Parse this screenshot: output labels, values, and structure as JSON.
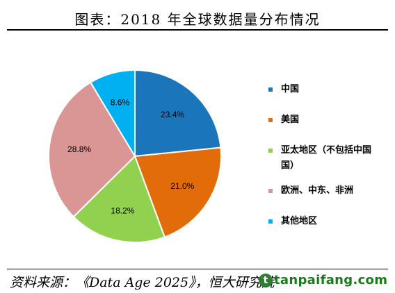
{
  "title": "图表：2018 年全球数据量分布情况",
  "source": "资料来源：《Data Age 2025》，恒大研究院",
  "watermark": {
    "logo_letter": "t",
    "text": "tanpaifang.com"
  },
  "chart_data": {
    "type": "pie",
    "categories": [
      "中国",
      "美国",
      "亚太地区（不包括中国）",
      "欧洲、中东、非洲",
      "其他地区"
    ],
    "legend_labels": [
      "中国",
      "美国",
      "亚太地区（不包括中国\n国）",
      "欧洲、中东、非洲",
      "其他地区"
    ],
    "values": [
      23.4,
      21.0,
      18.2,
      28.8,
      8.6
    ],
    "data_labels": [
      "23.4%",
      "21.0%",
      "18.2%",
      "28.8%",
      "8.6%"
    ],
    "colors": [
      "#1b75bb",
      "#e36c0a",
      "#92d050",
      "#d99694",
      "#00b0f0"
    ],
    "legend_position": "right",
    "start_angle": "12 o'clock, clockwise"
  }
}
